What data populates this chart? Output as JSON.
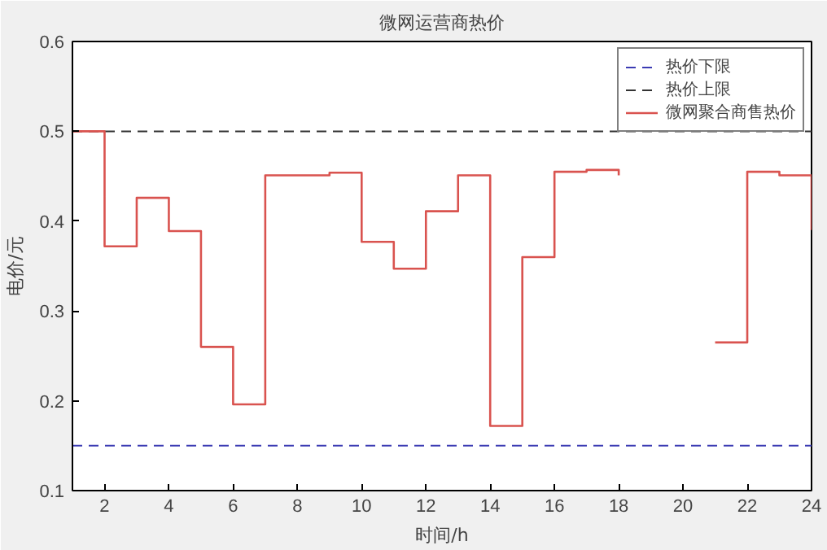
{
  "chart_data": {
    "type": "step",
    "title": "微网运营商热价",
    "xlabel": "时间/h",
    "ylabel": "电价/元",
    "x": [
      1,
      2,
      3,
      4,
      5,
      6,
      7,
      8,
      9,
      10,
      11,
      12,
      13,
      14,
      15,
      16,
      17,
      18,
      19,
      20,
      21,
      22,
      23,
      24
    ],
    "series": [
      {
        "name": "微网聚合商售热价",
        "color": "#d9534f",
        "values": [
          0.5,
          0.372,
          0.426,
          0.389,
          0.26,
          0.196,
          0.451,
          0.451,
          0.454,
          0.377,
          0.347,
          0.411,
          0.451,
          0.172,
          0.36,
          0.455,
          0.457,
          0.451,
          null,
          null,
          0.265,
          0.455,
          0.451,
          0.39
        ]
      }
    ],
    "ref_lines": [
      {
        "axis": "y",
        "value": 0.15,
        "label": "热价下限",
        "color": "#3b3bb3",
        "line_style": "dashed"
      },
      {
        "axis": "y",
        "value": 0.5,
        "label": "热价上限",
        "color": "#333333",
        "line_style": "dashed"
      }
    ],
    "xlim": [
      1,
      24
    ],
    "xticks": [
      2,
      4,
      6,
      8,
      10,
      12,
      14,
      16,
      18,
      20,
      22,
      24
    ],
    "ylim": [
      0.1,
      0.6
    ],
    "yticks": [
      0.1,
      0.2,
      0.3,
      0.4,
      0.5,
      0.6
    ],
    "grid": false,
    "legend": "top right",
    "line_style": "solid",
    "marker": "none"
  }
}
